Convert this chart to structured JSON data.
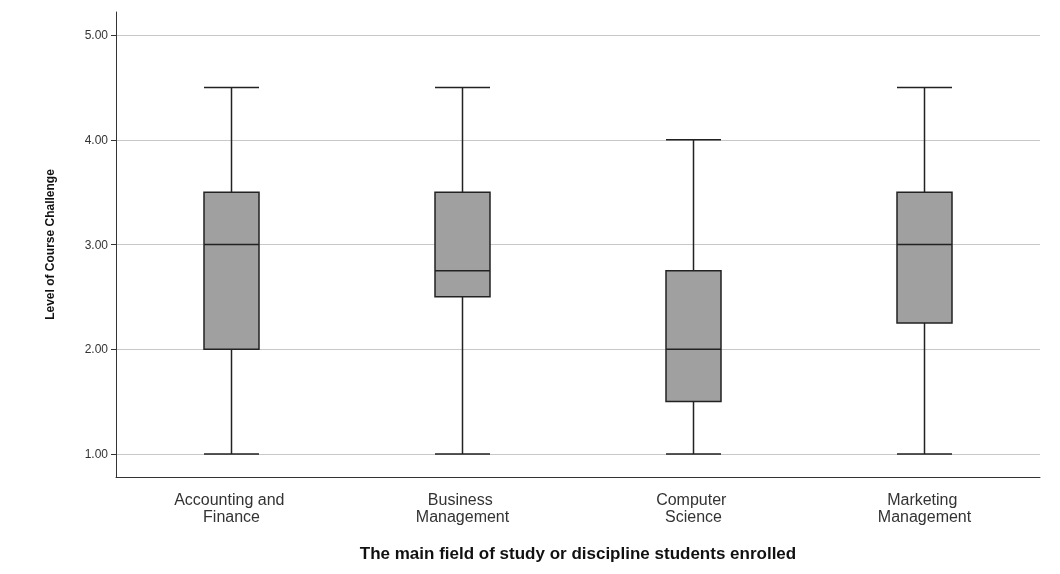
{
  "chart_data": {
    "type": "box",
    "xlabel": "The main field of study or discipline students enrolled",
    "ylabel": "Level of Course Challenge",
    "categories": [
      "Accounting and Finance",
      "Business Management",
      "Computer Science",
      "Marketing Management"
    ],
    "boxes": [
      {
        "low": 1,
        "q1": 2,
        "median": 3,
        "q3": 3.5,
        "high": 4.5
      },
      {
        "low": 1,
        "q1": 2.5,
        "median": 2.75,
        "q3": 3.5,
        "high": 4.5
      },
      {
        "low": 1,
        "q1": 1.5,
        "median": 2,
        "q3": 2.75,
        "high": 4
      },
      {
        "low": 1,
        "q1": 2.25,
        "median": 3,
        "q3": 3.5,
        "high": 4.5
      }
    ],
    "color": "#a0a0a0",
    "ylim": [
      0.78,
      5.22
    ],
    "yticks": [
      {
        "value": 1,
        "label": "1.00"
      },
      {
        "value": 2,
        "label": "2.00"
      },
      {
        "value": 3,
        "label": "3.00"
      },
      {
        "value": 4,
        "label": "4.00"
      },
      {
        "value": 5,
        "label": "5.00"
      }
    ],
    "grid": "y"
  }
}
